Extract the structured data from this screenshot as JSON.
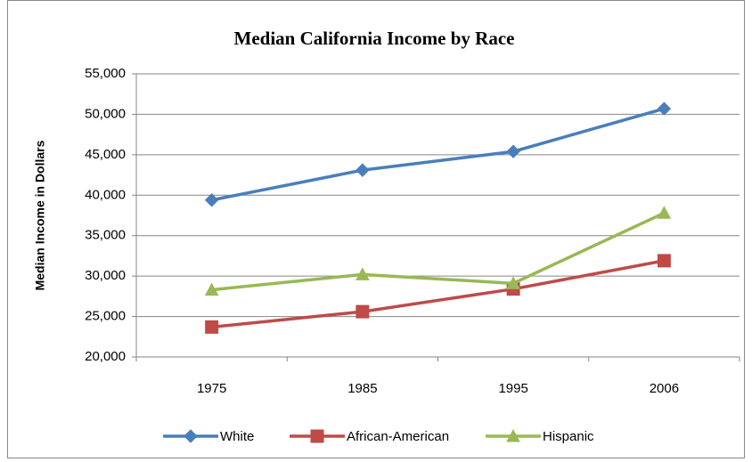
{
  "chart_data": {
    "type": "line",
    "title": "Median California Income by Race",
    "y_label": "Median Income in Dollars",
    "categories": [
      "1975",
      "1985",
      "1995",
      "2006"
    ],
    "series": [
      {
        "name": "White",
        "color": "#4a7ebb",
        "marker": "diamond",
        "values": [
          39400,
          43100,
          45400,
          50700
        ]
      },
      {
        "name": "African-American",
        "color": "#be4b48",
        "marker": "square",
        "values": [
          23700,
          25600,
          28400,
          31900
        ]
      },
      {
        "name": "Hispanic",
        "color": "#98b954",
        "marker": "triangle",
        "values": [
          28300,
          30200,
          29100,
          37800
        ]
      }
    ],
    "ylim": [
      20000,
      55000
    ],
    "yticks": [
      {
        "value": 20000,
        "label": "20,000"
      },
      {
        "value": 25000,
        "label": "25,000"
      },
      {
        "value": 30000,
        "label": "30,000"
      },
      {
        "value": 35000,
        "label": "35,000"
      },
      {
        "value": 40000,
        "label": "40,000"
      },
      {
        "value": 45000,
        "label": "45,000"
      },
      {
        "value": 50000,
        "label": "50,000"
      },
      {
        "value": 55000,
        "label": "55,000"
      }
    ],
    "grid": true,
    "legend": "bottom"
  }
}
